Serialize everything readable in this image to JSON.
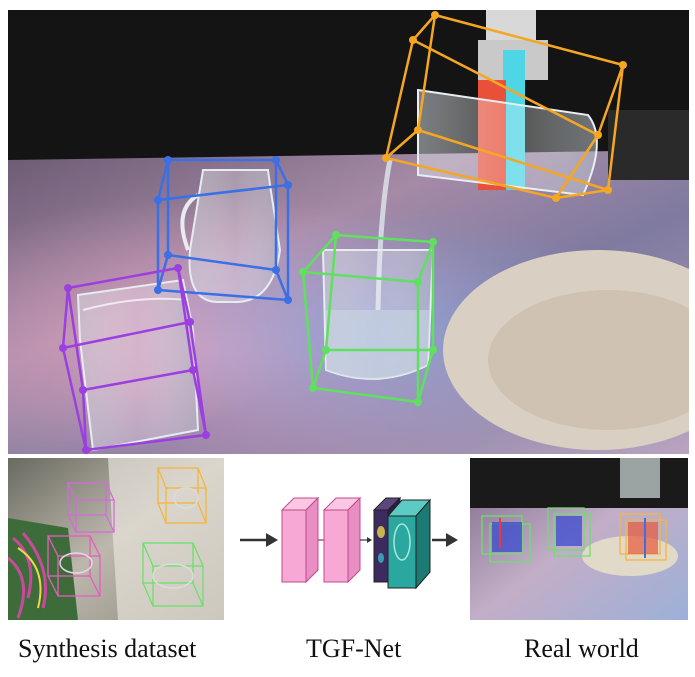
{
  "captions": {
    "synthesis": "Synthesis dataset",
    "network": "TGF-Net",
    "real": "Real world"
  },
  "colors": {
    "pitcher_box": "#3a6fe6",
    "glass_box": "#9b3fe0",
    "filled_glass_box": "#5fe05f",
    "pouring_mug_box": "#f5a623",
    "network_pink": "#f7a8d4",
    "network_dark": "#3d2a5e",
    "network_teal": "#2aa8a0",
    "arrow": "#333333"
  },
  "icons": [
    "arrow-right-icon"
  ]
}
